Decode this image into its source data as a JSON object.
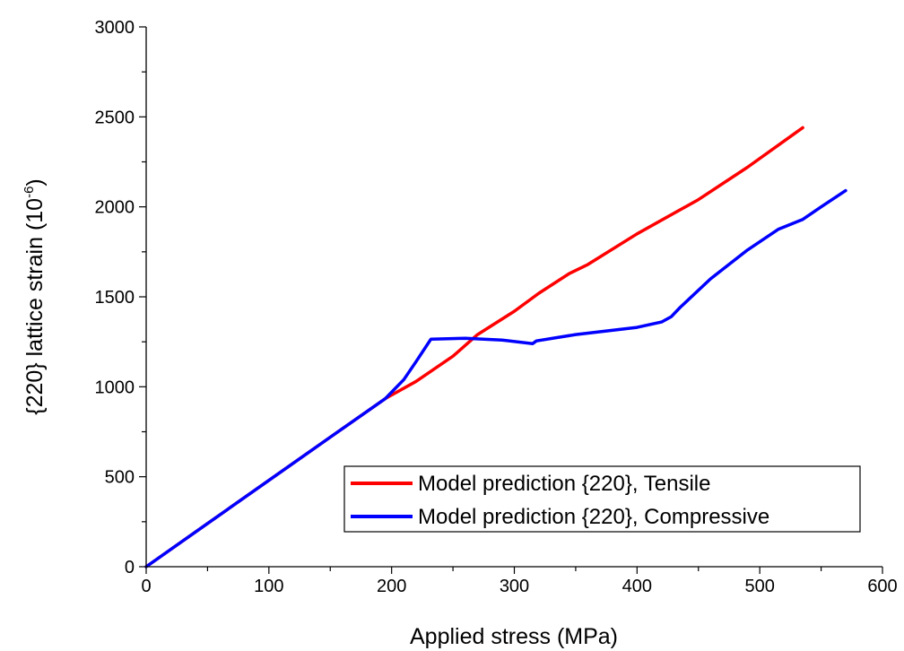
{
  "chart_data": {
    "type": "line",
    "title": "",
    "xlabel": "Applied stress (MPa)",
    "ylabel_main": "{220} lattice strain (10",
    "ylabel_exp": "-6",
    "ylabel_close": ")",
    "xlim": [
      0,
      600
    ],
    "ylim": [
      0,
      3000
    ],
    "xticks": [
      0,
      100,
      200,
      300,
      400,
      500,
      600
    ],
    "yticks": [
      0,
      500,
      1000,
      1500,
      2000,
      2500,
      3000
    ],
    "xtick_labels": [
      "0",
      "100",
      "200",
      "300",
      "400",
      "500",
      "600"
    ],
    "ytick_labels": [
      "0",
      "500",
      "1000",
      "1500",
      "2000",
      "2500",
      "3000"
    ],
    "grid": false,
    "legend_position": "bottom-right",
    "series": [
      {
        "name": "Model prediction {220}, Tensile",
        "color": "#ff0000",
        "points": [
          [
            0,
            0
          ],
          [
            50,
            240
          ],
          [
            100,
            480
          ],
          [
            150,
            720
          ],
          [
            195,
            935
          ],
          [
            220,
            1030
          ],
          [
            250,
            1170
          ],
          [
            270,
            1290
          ],
          [
            300,
            1420
          ],
          [
            320,
            1520
          ],
          [
            345,
            1630
          ],
          [
            360,
            1680
          ],
          [
            400,
            1850
          ],
          [
            450,
            2040
          ],
          [
            490,
            2220
          ],
          [
            535,
            2440
          ]
        ]
      },
      {
        "name": "Model prediction {220}, Compressive",
        "color": "#0000ff",
        "points": [
          [
            0,
            0
          ],
          [
            50,
            240
          ],
          [
            100,
            480
          ],
          [
            150,
            720
          ],
          [
            195,
            935
          ],
          [
            210,
            1040
          ],
          [
            220,
            1140
          ],
          [
            232,
            1265
          ],
          [
            260,
            1270
          ],
          [
            290,
            1260
          ],
          [
            315,
            1240
          ],
          [
            318,
            1255
          ],
          [
            350,
            1290
          ],
          [
            400,
            1330
          ],
          [
            420,
            1360
          ],
          [
            428,
            1390
          ],
          [
            435,
            1440
          ],
          [
            460,
            1600
          ],
          [
            490,
            1760
          ],
          [
            515,
            1875
          ],
          [
            535,
            1930
          ],
          [
            550,
            2000
          ],
          [
            570,
            2090
          ]
        ]
      }
    ]
  }
}
